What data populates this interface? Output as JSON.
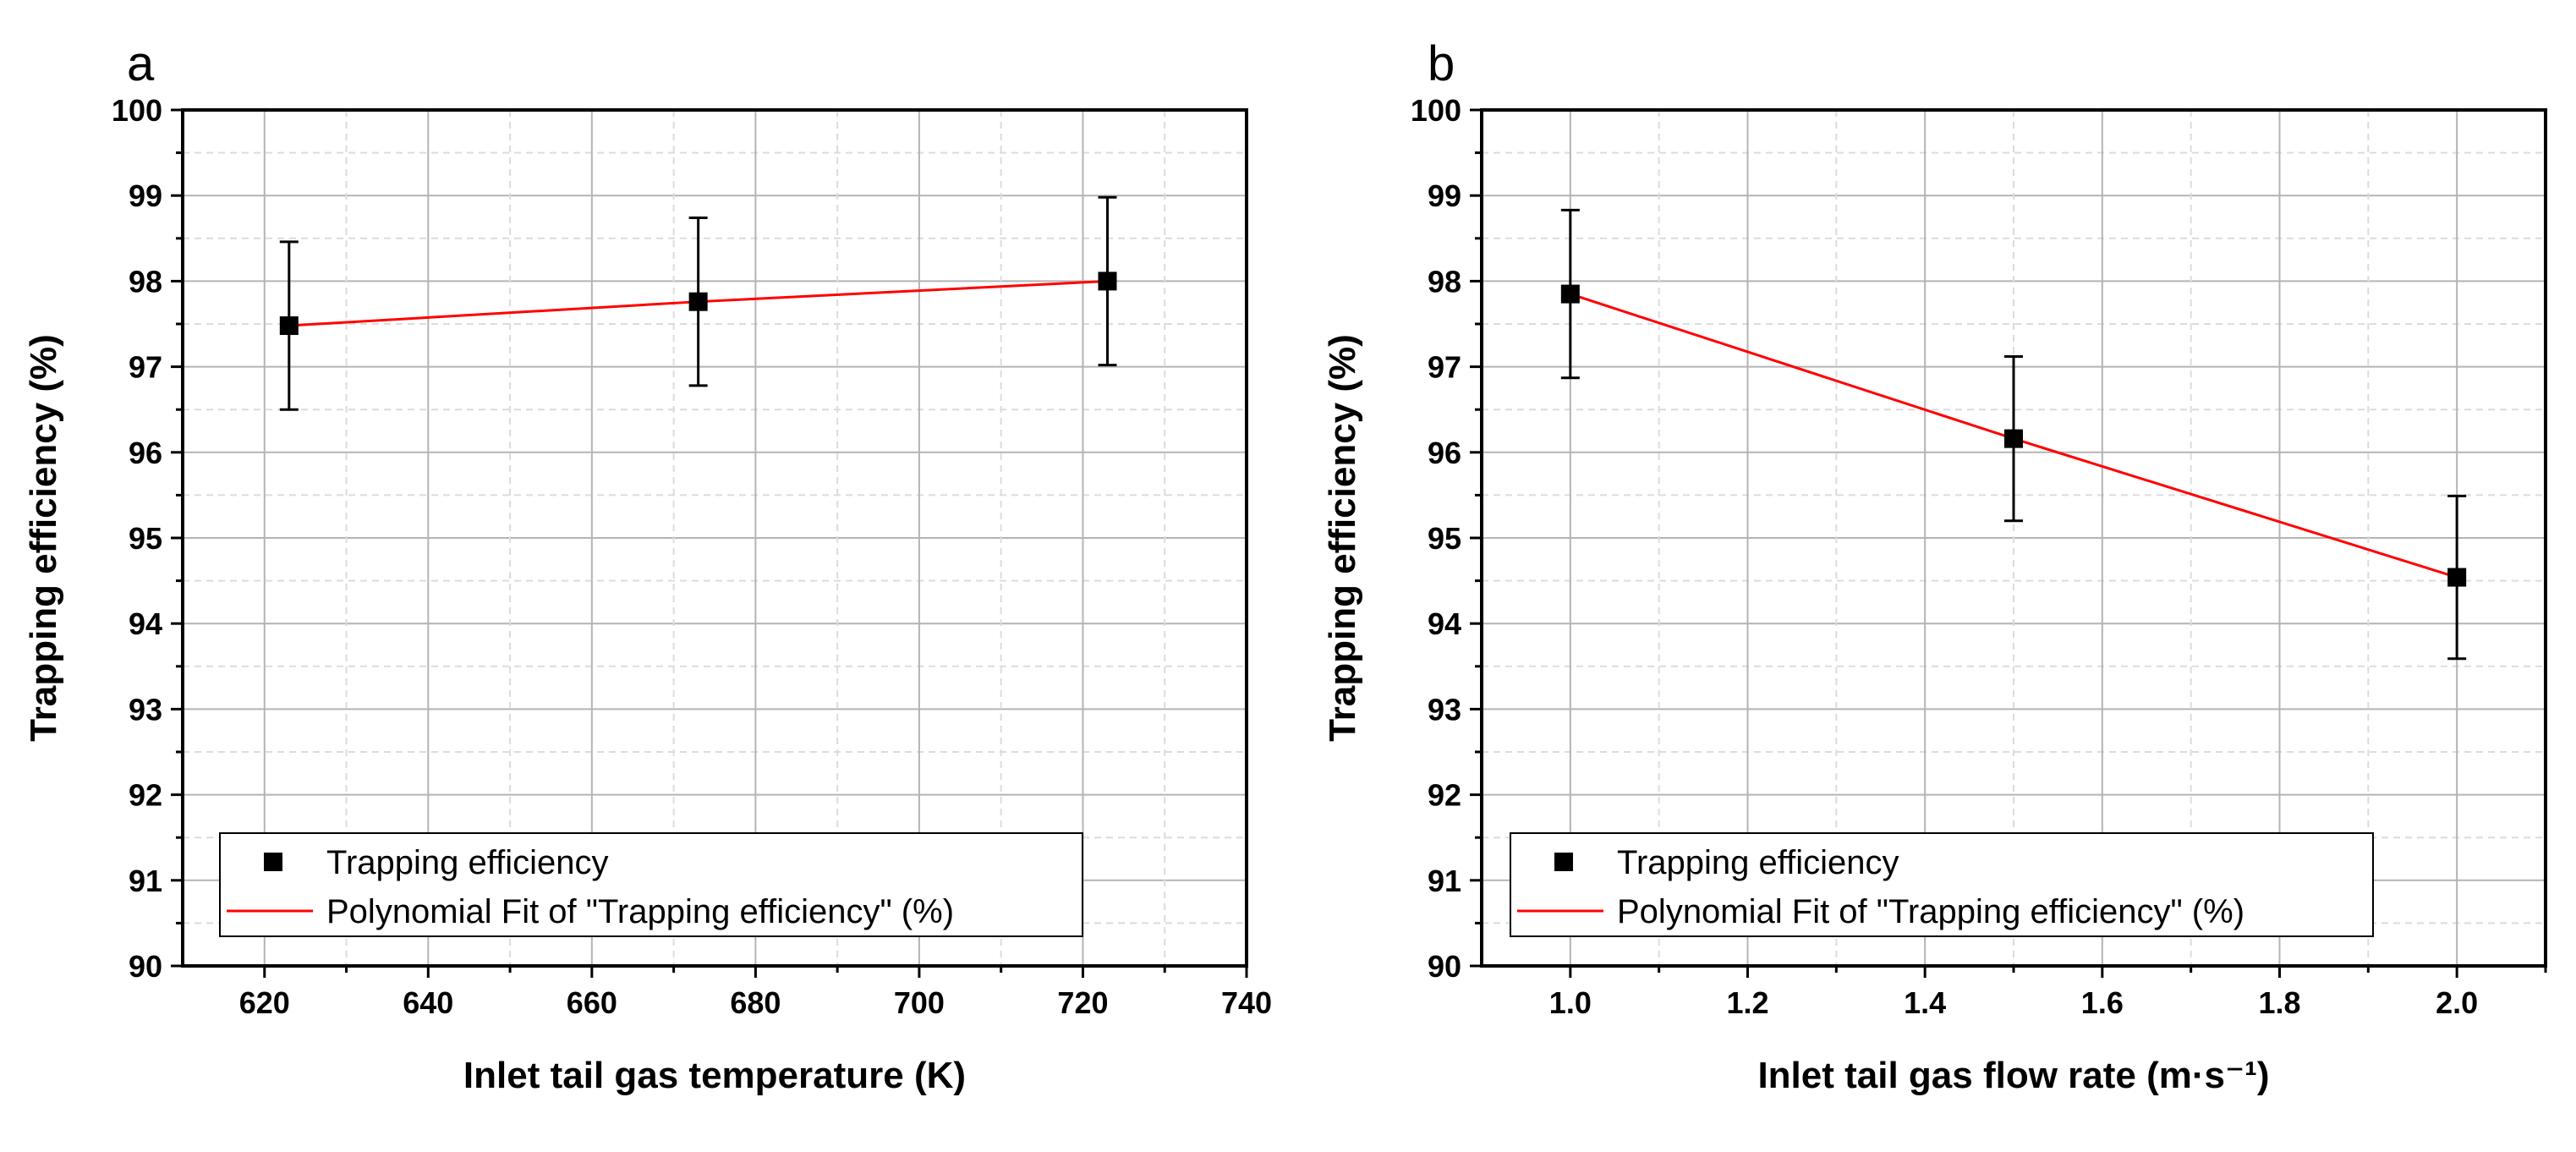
{
  "chart_data": [
    {
      "panel_label": "a",
      "type": "scatter",
      "xlabel": "Inlet tail gas temperature (K)",
      "ylabel": "Trapping efficiency (%)",
      "xlim": [
        610,
        740
      ],
      "ylim": [
        90,
        100
      ],
      "xticks": [
        620,
        640,
        660,
        680,
        700,
        720,
        740
      ],
      "yticks": [
        90,
        91,
        92,
        93,
        94,
        95,
        96,
        97,
        98,
        99,
        100
      ],
      "grid": true,
      "legend_position": "bottom-left",
      "series": [
        {
          "name": "Trapping efficiency",
          "marker": "square",
          "x": [
            623,
            673,
            723
          ],
          "y": [
            97.48,
            97.76,
            98.0
          ],
          "error": [
            0.98,
            0.98,
            0.98
          ]
        },
        {
          "name": "Polynomial Fit of \"Trapping efficiency\" (%)",
          "kind": "fit-line",
          "x": [
            623,
            673,
            723
          ],
          "y": [
            97.48,
            97.76,
            98.0
          ]
        }
      ]
    },
    {
      "panel_label": "b",
      "type": "scatter",
      "xlabel": "Inlet tail gas flow rate (m·s⁻¹)",
      "ylabel": "Trapping efficiency (%)",
      "xlim": [
        0.9,
        2.1
      ],
      "ylim": [
        90,
        100
      ],
      "xticks": [
        "1.0",
        "1.2",
        "1.4",
        "1.6",
        "1.8",
        "2.0"
      ],
      "yticks": [
        90,
        91,
        92,
        93,
        94,
        95,
        96,
        97,
        98,
        99,
        100
      ],
      "grid": true,
      "legend_position": "bottom-left",
      "series": [
        {
          "name": "Trapping efficiency",
          "marker": "square",
          "x": [
            1.0,
            1.5,
            2.0
          ],
          "y": [
            97.85,
            96.16,
            94.54
          ],
          "error": [
            0.98,
            0.96,
            0.95
          ]
        },
        {
          "name": "Polynomial Fit of \"Trapping efficiency\" (%)",
          "kind": "fit-line",
          "x": [
            1.0,
            1.5,
            2.0
          ],
          "y": [
            97.85,
            96.16,
            94.54
          ]
        }
      ]
    }
  ],
  "colors": {
    "fit_line": "#ff0000",
    "marker": "#000000",
    "grid_major": "#b4b4b4",
    "grid_minor": "#dcdcdc",
    "axis": "#000000"
  }
}
